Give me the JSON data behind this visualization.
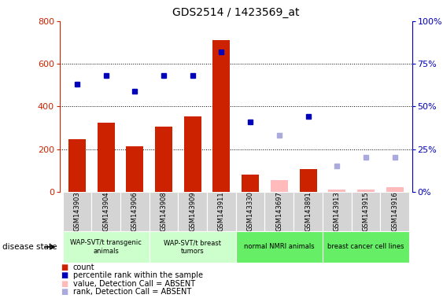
{
  "title": "GDS2514 / 1423569_at",
  "samples": [
    "GSM143903",
    "GSM143904",
    "GSM143906",
    "GSM143908",
    "GSM143909",
    "GSM143911",
    "GSM143330",
    "GSM143697",
    "GSM143891",
    "GSM143913",
    "GSM143915",
    "GSM143916"
  ],
  "count_present": [
    248,
    323,
    213,
    307,
    352,
    712,
    80,
    null,
    108,
    null,
    null,
    null
  ],
  "count_absent": [
    null,
    null,
    null,
    null,
    null,
    null,
    null,
    55,
    null,
    12,
    12,
    20
  ],
  "rank_present_pct": [
    63,
    68,
    59,
    68,
    68,
    82,
    41,
    null,
    44,
    null,
    null,
    null
  ],
  "rank_absent_pct": [
    null,
    null,
    null,
    null,
    null,
    null,
    null,
    33,
    null,
    15,
    20,
    20
  ],
  "ylim_left": [
    0,
    800
  ],
  "ylim_right": [
    0,
    100
  ],
  "yticks_left": [
    0,
    200,
    400,
    600,
    800
  ],
  "yticks_right": [
    0,
    25,
    50,
    75,
    100
  ],
  "bar_color_present": "#cc2200",
  "bar_color_absent": "#ffbbbb",
  "dot_color_present": "#0000bb",
  "dot_color_absent": "#aaaadd",
  "groups": [
    {
      "label": "WAP-SVT/t transgenic\nanimals",
      "color": "#ccffcc",
      "start": 0,
      "end": 2
    },
    {
      "label": "WAP-SVT/t breast\ntumors",
      "color": "#ccffcc",
      "start": 3,
      "end": 5
    },
    {
      "label": "normal NMRI animals",
      "color": "#66ee66",
      "start": 6,
      "end": 8
    },
    {
      "label": "breast cancer cell lines",
      "color": "#66ee66",
      "start": 9,
      "end": 11
    }
  ],
  "legend": [
    {
      "color": "#cc2200",
      "label": "count"
    },
    {
      "color": "#0000bb",
      "label": "percentile rank within the sample"
    },
    {
      "color": "#ffbbbb",
      "label": "value, Detection Call = ABSENT"
    },
    {
      "color": "#aaaadd",
      "label": "rank, Detection Call = ABSENT"
    }
  ]
}
